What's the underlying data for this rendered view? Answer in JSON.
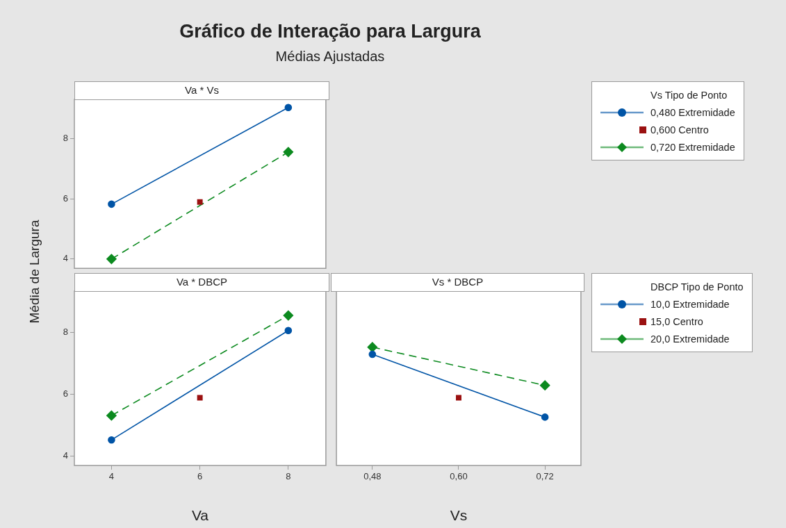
{
  "chart_data": [
    {
      "type": "line",
      "title": "Gráfico de Interação para Largura",
      "subtitle": "Médias Ajustadas",
      "ylabel": "Média de Largura",
      "annotations": [
        "Va * Vs"
      ],
      "legend": "right",
      "legend_title": "Vs Tipo de Ponto",
      "xlim": [
        3.16,
        8.85
      ],
      "ylim": [
        3.69,
        9.3
      ],
      "yticks": [
        4,
        6,
        8
      ],
      "tick_labels": "y",
      "series": [
        {
          "name": "0,480 Extremidade",
          "color": "#0054a6",
          "x": [
            4,
            8
          ],
          "values": [
            5.82,
            9.03
          ],
          "marker": "circle",
          "line_style": "solid"
        },
        {
          "name": "0,600 Centro",
          "type": "scatter",
          "color": "#9b1111",
          "x": [
            6
          ],
          "values": [
            5.89
          ],
          "marker": "square"
        },
        {
          "name": "0,720 Extremidade",
          "color": "#0c8a1f",
          "x": [
            4,
            8
          ],
          "values": [
            4.0,
            7.55
          ],
          "marker": "diamond",
          "line_style": "dashed"
        }
      ]
    },
    {
      "type": "line",
      "xlabel": "Va",
      "annotations": [
        "Va * DBCP"
      ],
      "xlim": [
        3.16,
        8.85
      ],
      "ylim": [
        3.69,
        9.35
      ],
      "xticks": [
        4,
        6,
        8
      ],
      "yticks": [
        4,
        6,
        8
      ],
      "series": [
        {
          "color": "#0054a6",
          "x": [
            4,
            8
          ],
          "values": [
            4.52,
            8.07
          ],
          "marker": "circle",
          "line_style": "solid"
        },
        {
          "type": "scatter",
          "color": "#9b1111",
          "x": [
            6
          ],
          "values": [
            5.89
          ],
          "marker": "square"
        },
        {
          "color": "#0c8a1f",
          "x": [
            4,
            8
          ],
          "values": [
            5.31,
            8.56
          ],
          "marker": "diamond",
          "line_style": "dashed"
        }
      ]
    },
    {
      "type": "line",
      "xlabel": "Vs",
      "annotations": [
        "Vs * DBCP"
      ],
      "legend": "right",
      "legend_title": "DBCP Tipo de Ponto",
      "xlim": [
        0.43,
        0.77
      ],
      "ylim": [
        3.69,
        9.35
      ],
      "xticks": [
        {
          "value": 0.48,
          "label": "0,48"
        },
        {
          "value": 0.6,
          "label": "0,60"
        },
        {
          "value": 0.72,
          "label": "0,72"
        }
      ],
      "tick_labels": "x",
      "series": [
        {
          "name": "10,0 Extremidade",
          "color": "#0054a6",
          "x": [
            0.48,
            0.72
          ],
          "values": [
            7.3,
            5.26
          ],
          "marker": "circle",
          "line_style": "solid"
        },
        {
          "name": "15,0 Centro",
          "type": "scatter",
          "color": "#9b1111",
          "x": [
            0.6
          ],
          "values": [
            5.89
          ],
          "marker": "square"
        },
        {
          "name": "20,0 Extremidade",
          "color": "#0c8a1f",
          "x": [
            0.48,
            0.72
          ],
          "values": [
            7.53,
            6.29
          ],
          "marker": "diamond",
          "line_style": "dashed"
        }
      ]
    }
  ]
}
